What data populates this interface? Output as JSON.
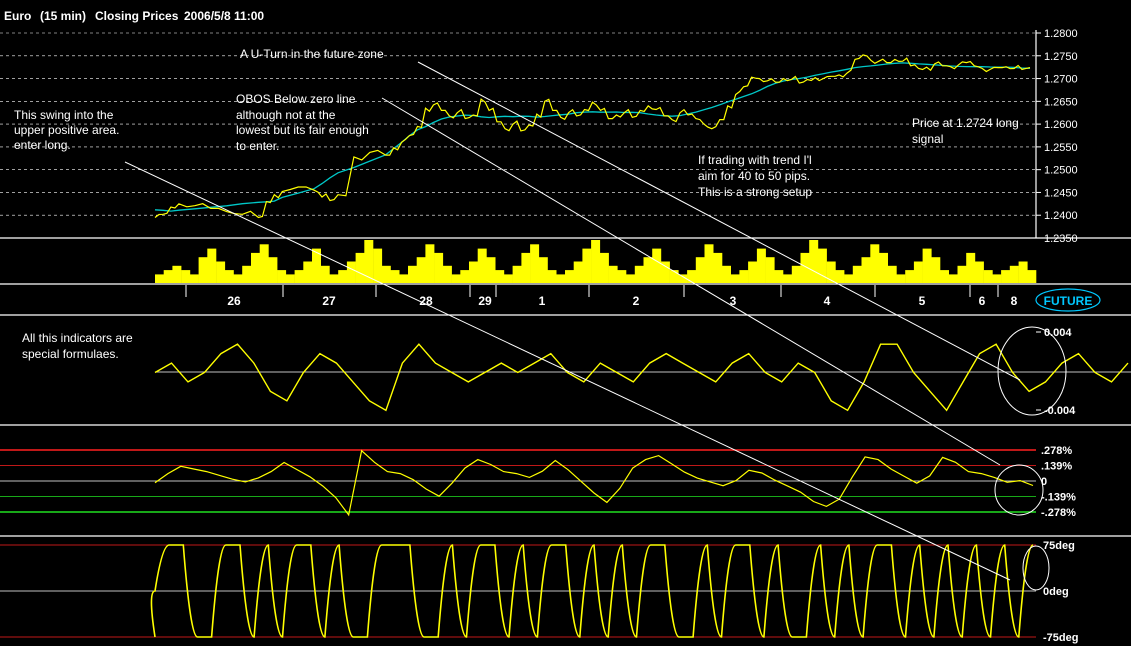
{
  "header": {
    "symbol": "Euro",
    "interval": "(15 min)",
    "price_type": "Closing Prices",
    "datetime": "2006/5/8  11:00"
  },
  "annotations": {
    "uturn": "A U-Turn in the future zone",
    "swing_line1": "This swing into the",
    "swing_line2": "upper positive area.",
    "swing_line3": "enter long.",
    "obos_line1": "OBOS Below zero line",
    "obos_line2": "although not at the",
    "obos_line3": "lowest but its fair enough",
    "obos_line4": "to enter.",
    "price_line1": "Price at 1.2724 long",
    "price_line2": "signal",
    "trend_line1": "If trading with trend I'l",
    "trend_line2": "aim for 40 to 50 pips.",
    "trend_line3": "This is a strong setup",
    "indicators_line1": "All this indicators are",
    "indicators_line2": "special formulaes."
  },
  "future_label": "FUTURE",
  "colors": {
    "background": "#000000",
    "price": "#ffff00",
    "moving_average": "#00c8c8",
    "grid": "#ffffff",
    "upper_band": "#ff2020",
    "lower_band": "#20e020",
    "future_badge": "#00c8ff"
  },
  "chart_data": [
    {
      "type": "line",
      "title": "Closing Prices",
      "series": [
        {
          "name": "",
          "x_index": [
            0,
            8,
            16,
            24,
            40,
            56,
            72,
            88,
            104,
            112,
            120,
            128,
            144,
            160,
            168,
            176,
            184,
            200,
            216,
            232,
            240,
            248,
            256,
            264,
            272,
            280,
            288,
            296,
            304,
            312,
            320,
            328,
            336,
            344,
            352,
            360,
            368,
            376,
            384,
            392,
            400,
            408,
            416,
            424,
            432,
            440,
            448,
            456,
            464,
            472,
            480,
            488,
            496,
            504,
            512,
            520,
            528,
            536,
            544,
            552,
            560,
            568,
            576,
            584,
            592,
            600,
            608,
            616,
            624,
            632,
            640,
            648,
            656,
            664,
            672,
            680,
            688,
            696,
            704,
            712,
            720,
            728,
            736,
            744,
            752,
            760,
            768,
            776,
            784,
            792,
            800,
            808,
            816,
            824,
            832,
            840,
            848,
            856,
            864,
            872,
            880
          ],
          "values": [
            1.2395,
            1.2402,
            1.2418,
            1.2425,
            1.2421,
            1.2415,
            1.2408,
            1.2402,
            1.2395,
            1.243,
            1.2445,
            1.2452,
            1.2462,
            1.2455,
            1.244,
            1.2432,
            1.2445,
            1.2528,
            1.2538,
            1.2532,
            1.2548,
            1.256,
            1.2575,
            1.2595,
            1.2635,
            1.2642,
            1.263,
            1.2618,
            1.2625,
            1.2612,
            1.262,
            1.2655,
            1.263,
            1.2605,
            1.259,
            1.26,
            1.2585,
            1.2598,
            1.2622,
            1.265,
            1.263,
            1.2615,
            1.2625,
            1.2618,
            1.2632,
            1.2648,
            1.263,
            1.2612,
            1.262,
            1.2625,
            1.2615,
            1.263,
            1.264,
            1.2632,
            1.2618,
            1.261,
            1.2625,
            1.262,
            1.2612,
            1.26,
            1.259,
            1.261,
            1.264,
            1.2665,
            1.2682,
            1.2703,
            1.27,
            1.2695,
            1.2692,
            1.27,
            1.2698,
            1.269,
            1.2698,
            1.2702,
            1.27,
            1.2705,
            1.2708,
            1.2712,
            1.2742,
            1.2752,
            1.274,
            1.2738,
            1.2735,
            1.2742,
            1.2738,
            1.2728,
            1.2722,
            1.2725,
            1.2732,
            1.2728,
            1.2726,
            1.273,
            1.2735,
            1.2728,
            1.2722,
            1.272,
            1.2724,
            1.2726,
            1.2722,
            1.272,
            1.2724
          ]
        }
      ],
      "yticks": [
        1.235,
        1.24,
        1.245,
        1.25,
        1.255,
        1.26,
        1.265,
        1.27,
        1.275,
        1.28
      ],
      "ytick_labels": [
        "1.2350",
        "1.2400",
        "1.2450",
        "1.2500",
        "1.2550",
        "1.2600",
        "1.2650",
        "1.2700",
        "1.2750",
        "1.2800"
      ],
      "ylim": [
        1.235,
        1.28
      ],
      "grid": "dashed horizontal"
    },
    {
      "type": "bar",
      "title": "",
      "description": "volume / activity histogram",
      "values": [
        2,
        3,
        4,
        3,
        2,
        6,
        8,
        5,
        3,
        2,
        4,
        7,
        9,
        6,
        3,
        2,
        3,
        5,
        8,
        4,
        2,
        3,
        5,
        7,
        10,
        8,
        4,
        3,
        2,
        4,
        6,
        9,
        7,
        4,
        2,
        3,
        5,
        8,
        6,
        3,
        2,
        4,
        7,
        9,
        6,
        3,
        2,
        3,
        5,
        8,
        10,
        7,
        4,
        3,
        2,
        4,
        6,
        8,
        5,
        3,
        2,
        3,
        6,
        9,
        7,
        4,
        2,
        3,
        5,
        8,
        6,
        3,
        2,
        4,
        7,
        10,
        8,
        5,
        3,
        2,
        4,
        6,
        9,
        7,
        4,
        2,
        3,
        5,
        8,
        6,
        3,
        2,
        4,
        7,
        5,
        3,
        2,
        3,
        4,
        5,
        3
      ]
    },
    {
      "type": "table",
      "title": "Date axis",
      "categories": [
        "26",
        "27",
        "28",
        "29",
        "1",
        "2",
        "3",
        "4",
        "5",
        "6",
        "8"
      ]
    },
    {
      "type": "line",
      "title": "",
      "series": [
        {
          "name": "",
          "values": [
            0.0,
            0.001,
            -0.001,
            0.0,
            0.002,
            0.003,
            0.001,
            -0.002,
            -0.003,
            0.0,
            0.002,
            0.001,
            -0.001,
            -0.003,
            -0.004,
            0.001,
            0.003,
            0.001,
            0.0,
            -0.001,
            0.0,
            0.001,
            0.0,
            0.001,
            0.002,
            0.0,
            -0.001,
            0.001,
            0.0,
            -0.001,
            0.001,
            0.002,
            0.001,
            0.0,
            -0.001,
            0.001,
            0.002,
            0.0,
            -0.001,
            0.001,
            0.0,
            -0.003,
            -0.004,
            -0.001,
            0.003,
            0.003,
            0.0,
            -0.002,
            -0.004,
            -0.001,
            0.002,
            0.003,
            0.0,
            -0.002,
            -0.001,
            0.001,
            0.002,
            0.0,
            -0.001,
            0.001
          ]
        }
      ],
      "ytick_labels": [
        "0.004",
        "-0.004"
      ],
      "ylim": [
        -0.0045,
        0.0045
      ]
    },
    {
      "type": "line",
      "title": "",
      "series": [
        {
          "name": "",
          "values": [
            0.0,
            0.05,
            0.12,
            0.1,
            0.08,
            0.05,
            0.02,
            0.0,
            0.04,
            0.1,
            0.15,
            0.09,
            0.03,
            -0.05,
            -0.15,
            -0.3,
            0.28,
            0.18,
            0.1,
            0.05,
            0.0,
            -0.08,
            -0.14,
            -0.02,
            0.12,
            0.2,
            0.16,
            0.1,
            0.05,
            0.02,
            0.08,
            0.18,
            0.1,
            0.0,
            -0.1,
            -0.18,
            -0.05,
            0.1,
            0.18,
            0.22,
            0.15,
            0.08,
            0.03,
            0.0,
            -0.03,
            0.02,
            0.08,
            0.06,
            0.0,
            -0.05,
            -0.1,
            -0.18,
            -0.22,
            -0.15,
            0.05,
            0.2,
            0.18,
            0.1,
            0.04,
            -0.02,
            0.05,
            0.22,
            0.18,
            0.1,
            0.05,
            0.02,
            -0.02,
            0.0,
            -0.04
          ]
        }
      ],
      "ytick_labels": [
        ".278%",
        ".139%",
        "0",
        "-.139%",
        "-.278%"
      ],
      "reference_lines": [
        0.278,
        0.139,
        0,
        -0.139,
        -0.278
      ],
      "ylim": [
        -0.33,
        0.33
      ]
    },
    {
      "type": "line",
      "title": "",
      "series": [
        {
          "name": "",
          "values": [
            0.0,
            75,
            75,
            -75,
            -75,
            75,
            75,
            -75,
            75,
            -75,
            75,
            75,
            -75,
            75,
            -75,
            -75,
            75,
            75,
            75,
            -75,
            -75,
            75,
            -75,
            75,
            75,
            -75,
            75,
            -75,
            75,
            75,
            -75,
            75,
            -75,
            75,
            -75,
            75,
            75,
            -75,
            -75,
            75,
            -75,
            75,
            75,
            -75,
            75,
            -75,
            -75,
            75,
            -75,
            75,
            -75,
            75,
            75,
            -75,
            75,
            -75,
            75,
            -75,
            75,
            -75,
            75,
            -75,
            75
          ]
        }
      ],
      "ytick_labels": [
        "75deg",
        "0deg",
        "-75deg"
      ],
      "ylim": [
        -85,
        85
      ]
    }
  ]
}
